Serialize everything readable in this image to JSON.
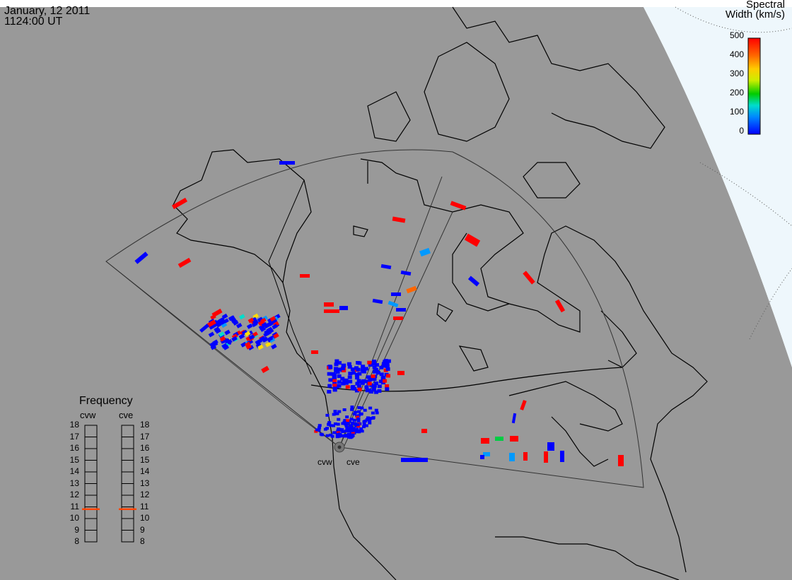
{
  "header": {
    "date": "January, 12 2011",
    "time": "1124:00 UT"
  },
  "colorbar": {
    "title_line1": "Spectral",
    "title_line2": "Width (km/s)",
    "ticks": [
      "500",
      "400",
      "300",
      "200",
      "100",
      "0"
    ],
    "range": [
      0,
      500
    ],
    "colors": [
      "#0000ff",
      "#00aaff",
      "#00ffcc",
      "#00cc00",
      "#ccff00",
      "#ffcc00",
      "#ff6600",
      "#ff0000"
    ]
  },
  "radars": {
    "cvw": {
      "label": "cvw"
    },
    "cve": {
      "label": "cve"
    }
  },
  "frequency_panel": {
    "title": "Frequency",
    "ticks": [
      "18",
      "17",
      "16",
      "15",
      "14",
      "13",
      "12",
      "11",
      "10",
      "9",
      "8"
    ],
    "range_mhz": [
      8,
      18
    ],
    "cvw_freq_mhz": 10.8,
    "cve_freq_mhz": 10.8,
    "marker_color": "#ff4400"
  },
  "colors": {
    "land_background": "#999999",
    "outside_map": "#f0f8ff",
    "low_width": "#0000ff",
    "high_width": "#ff0000"
  }
}
